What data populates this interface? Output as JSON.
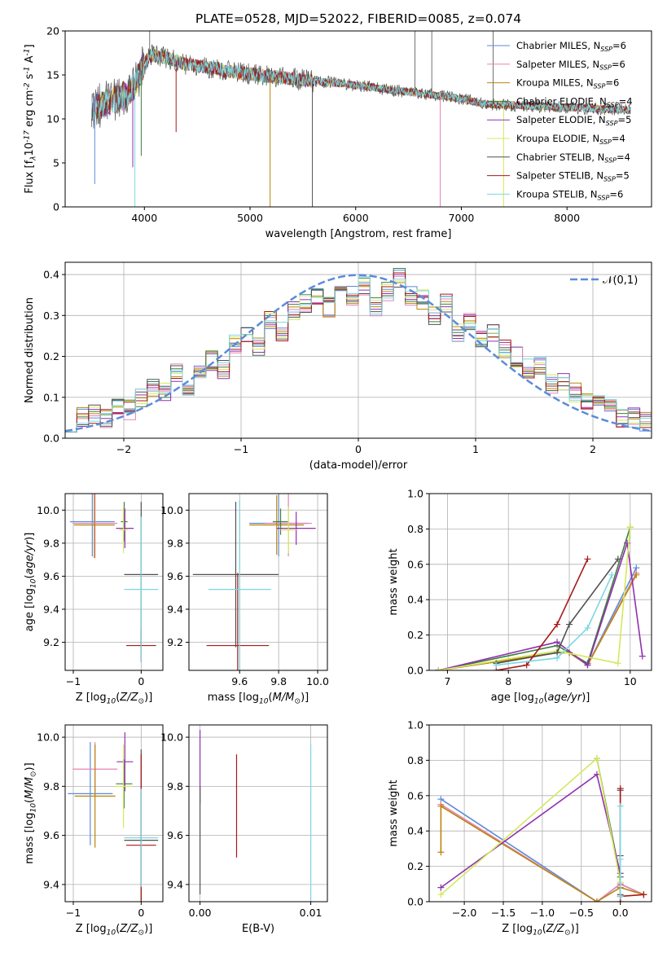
{
  "colors": {
    "chabrier_miles": "#5b8bd9",
    "salpeter_miles": "#e882b5",
    "kroupa_miles": "#b8860b",
    "chabrier_elodie": "#3f7f3f",
    "salpeter_elodie": "#9030b0",
    "kroupa_elodie": "#d4e85c",
    "chabrier_stelib": "#505050",
    "salpeter_stelib": "#a81818",
    "kroupa_stelib": "#7cd6e2",
    "bestfit_orange": "#e0733c",
    "gauss": "#5b8bd9",
    "grid": "#b0b0b0"
  },
  "chart_data": [
    {
      "id": "spectrum",
      "type": "line",
      "title": "PLATE=0528, MJD=52022, FIBERID=0085, z=0.074",
      "xlabel": "wavelength [Angstrom, rest frame]",
      "ylabel": "Flux [f$_\\lambda$10$^{-17}$ erg cm$^{-2}$ s$^{-1}$ A$^{-1}$]",
      "xlim": [
        3250,
        8800
      ],
      "ylim": [
        0,
        20
      ],
      "xticks": [
        4000,
        5000,
        6000,
        7000,
        8000
      ],
      "yticks": [
        0,
        5,
        10,
        15,
        20
      ],
      "grid": false,
      "legend_position": "top-right",
      "legend": [
        "Chabrier MILES, N$_{SSP}$=6",
        "Salpeter MILES, N$_{SSP}$=6",
        "Kroupa MILES, N$_{SSP}$=6",
        "Chabrier ELODIE, N$_{SSP}$=4",
        "Salpeter ELODIE, N$_{SSP}$=5",
        "Kroupa ELODIE, N$_{SSP}$=4",
        "Chabrier STELIB, N$_{SSP}$=4",
        "Salpeter STELIB, N$_{SSP}$=5",
        "Kroupa STELIB, N$_{SSP}$=6"
      ],
      "continuum": {
        "x": [
          3500,
          3600,
          3700,
          3800,
          3900,
          3980,
          4050,
          4200,
          4400,
          4600,
          4800,
          5000,
          5200,
          5400,
          5600,
          5800,
          6000,
          6200,
          6400,
          6600,
          6800,
          7000,
          7200,
          7400,
          7600,
          7800,
          8000,
          8200,
          8400,
          8600
        ],
        "y": [
          11.4,
          11.6,
          12.1,
          12.6,
          13.6,
          15.8,
          17.2,
          17.0,
          16.2,
          15.9,
          15.4,
          15.1,
          14.8,
          14.6,
          14.3,
          14.1,
          13.8,
          13.5,
          13.2,
          12.9,
          12.6,
          12.3,
          11.7,
          11.6,
          11.5,
          11.4,
          11.3,
          11.2,
          11.1,
          11.0
        ]
      },
      "absorption_dips": [
        {
          "x": 3530,
          "y": 2.6
        },
        {
          "x": 3890,
          "y": 4.5
        },
        {
          "x": 3910,
          "y": 0
        },
        {
          "x": 3970,
          "y": 5.8
        },
        {
          "x": 4300,
          "y": 8.5
        },
        {
          "x": 5190,
          "y": 0
        },
        {
          "x": 5590,
          "y": 0
        },
        {
          "x": 6800,
          "y": 0
        },
        {
          "x": 7400,
          "y": 0
        }
      ],
      "emission_spikes": [
        {
          "x": 4050,
          "y": 20
        },
        {
          "x": 6560,
          "y": 20
        },
        {
          "x": 6720,
          "y": 20
        },
        {
          "x": 7300,
          "y": 20
        }
      ]
    },
    {
      "id": "residuals",
      "type": "line",
      "xlabel": "(data-model)/error",
      "ylabel": "Normed distribution",
      "xlim": [
        -2.5,
        2.5
      ],
      "ylim": [
        0,
        0.43
      ],
      "xticks": [
        -2,
        -1,
        0,
        1,
        2
      ],
      "yticks": [
        0.0,
        0.1,
        0.2,
        0.3,
        0.4
      ],
      "grid": true,
      "legend_position": "top-right",
      "legend": [
        "$\\mathcal{N}(0,1)$"
      ],
      "bin_edges": [
        -2.5,
        -2.4,
        -2.3,
        -2.2,
        -2.1,
        -2.0,
        -1.9,
        -1.8,
        -1.7,
        -1.6,
        -1.5,
        -1.4,
        -1.3,
        -1.2,
        -1.1,
        -1.0,
        -0.9,
        -0.8,
        -0.7,
        -0.6,
        -0.5,
        -0.4,
        -0.3,
        -0.2,
        -0.1,
        0.0,
        0.1,
        0.2,
        0.3,
        0.4,
        0.5,
        0.6,
        0.7,
        0.8,
        0.9,
        1.0,
        1.1,
        1.2,
        1.3,
        1.4,
        1.5,
        1.6,
        1.7,
        1.8,
        1.9,
        2.0,
        2.1,
        2.2,
        2.3,
        2.4,
        2.5
      ],
      "observed": [
        0.04,
        0.05,
        0.06,
        0.05,
        0.08,
        0.07,
        0.1,
        0.12,
        0.11,
        0.16,
        0.12,
        0.17,
        0.19,
        0.17,
        0.23,
        0.26,
        0.22,
        0.29,
        0.26,
        0.31,
        0.33,
        0.35,
        0.32,
        0.37,
        0.35,
        0.37,
        0.32,
        0.36,
        0.39,
        0.35,
        0.34,
        0.3,
        0.33,
        0.26,
        0.29,
        0.24,
        0.26,
        0.22,
        0.2,
        0.17,
        0.18,
        0.13,
        0.14,
        0.11,
        0.09,
        0.08,
        0.07,
        0.05,
        0.05,
        0.04
      ],
      "gaussian": {
        "mu": 0,
        "sigma": 1
      }
    },
    {
      "id": "age_vs_Z",
      "type": "scatter",
      "xlabel": "Z [log$_{10}$($Z/Z_\\odot$)]",
      "ylabel": "age  [log$_{10}$($age/yr$)]",
      "xlim": [
        -1.12,
        0.32
      ],
      "ylim": [
        9.03,
        10.1
      ],
      "xticks": [
        -1,
        0
      ],
      "yticks": [
        9.2,
        9.4,
        9.6,
        9.8,
        10.0
      ],
      "grid": true,
      "errorbars": [
        {
          "model": "chabrier_miles",
          "x": -0.72,
          "xerr": 0.33,
          "y": 9.93,
          "yerr": 0.21
        },
        {
          "model": "salpeter_miles",
          "x": -0.68,
          "xerr": 0.33,
          "y": 9.92,
          "yerr": 0.21
        },
        {
          "model": "kroupa_miles",
          "x": -0.69,
          "xerr": 0.3,
          "y": 9.91,
          "yerr": 0.2
        },
        {
          "model": "chabrier_elodie",
          "x": -0.25,
          "xerr": 0.05,
          "y": 9.93,
          "yerr": 0.12
        },
        {
          "model": "salpeter_elodie",
          "x": -0.24,
          "xerr": 0.13,
          "y": 9.89,
          "yerr": 0.12
        },
        {
          "model": "kroupa_elodie",
          "x": -0.26,
          "xerr": 0.06,
          "y": 9.88,
          "yerr": 0.14
        },
        {
          "model": "chabrier_stelib",
          "x": 0.0,
          "xerr": 0.25,
          "y": 9.61,
          "yerr": 0.44
        },
        {
          "model": "salpeter_stelib",
          "x": 0.0,
          "xerr": 0.22,
          "y": 9.18,
          "yerr": 0.1
        },
        {
          "model": "kroupa_stelib",
          "x": 0.0,
          "xerr": 0.25,
          "y": 9.52,
          "yerr": 0.44
        }
      ]
    },
    {
      "id": "age_vs_mass",
      "type": "scatter",
      "xlabel": "mass [log$_{10}$($M/M_\\odot$)]",
      "ylabel": "",
      "xlim": [
        9.34,
        10.05
      ],
      "ylim": [
        9.03,
        10.1
      ],
      "xticks": [
        9.6,
        9.8,
        10.0
      ],
      "yticks": [
        9.2,
        9.4,
        9.6,
        9.8,
        10.0
      ],
      "grid": true,
      "errorbars": [
        {
          "model": "chabrier_miles",
          "x": 9.8,
          "xerr": 0.15,
          "y": 9.92,
          "yerr": 0.2
        },
        {
          "model": "salpeter_miles",
          "x": 9.85,
          "xerr": 0.12,
          "y": 9.92,
          "yerr": 0.2
        },
        {
          "model": "kroupa_miles",
          "x": 9.79,
          "xerr": 0.14,
          "y": 9.91,
          "yerr": 0.18
        },
        {
          "model": "chabrier_elodie",
          "x": 9.81,
          "xerr": 0.04,
          "y": 9.93,
          "yerr": 0.08
        },
        {
          "model": "salpeter_elodie",
          "x": 9.89,
          "xerr": 0.1,
          "y": 9.89,
          "yerr": 0.1
        },
        {
          "model": "kroupa_elodie",
          "x": 9.85,
          "xerr": 0.04,
          "y": 9.88,
          "yerr": 0.14
        },
        {
          "model": "chabrier_stelib",
          "x": 9.58,
          "xerr": 0.22,
          "y": 9.61,
          "yerr": 0.44
        },
        {
          "model": "salpeter_stelib",
          "x": 9.59,
          "xerr": 0.16,
          "y": 9.18,
          "yerr": 0.44
        },
        {
          "model": "kroupa_stelib",
          "x": 9.6,
          "xerr": 0.16,
          "y": 9.52,
          "yerr": 0.54
        }
      ]
    },
    {
      "id": "weight_vs_age",
      "type": "line",
      "xlabel": "age  [log$_{10}$($age/yr$)]",
      "ylabel": "mass weight",
      "xlim": [
        6.7,
        10.35
      ],
      "ylim": [
        0,
        1
      ],
      "xticks": [
        7,
        8,
        9,
        10
      ],
      "yticks": [
        0.0,
        0.2,
        0.4,
        0.6,
        0.8,
        1.0
      ],
      "grid": true,
      "series": [
        {
          "model": "chabrier_miles",
          "x": [
            6.85,
            8.8,
            9.0,
            9.3,
            10.1
          ],
          "y": [
            0.0,
            0.1,
            0.1,
            0.03,
            0.58
          ]
        },
        {
          "model": "salpeter_miles",
          "x": [
            6.85,
            8.8,
            9.0,
            9.3,
            10.1
          ],
          "y": [
            0.0,
            0.1,
            0.1,
            0.03,
            0.55
          ]
        },
        {
          "model": "kroupa_miles",
          "x": [
            6.85,
            8.8,
            9.0,
            9.3,
            10.1
          ],
          "y": [
            0.0,
            0.1,
            0.1,
            0.03,
            0.54
          ]
        },
        {
          "model": "chabrier_elodie",
          "x": [
            6.85,
            8.8,
            9.3,
            10.0
          ],
          "y": [
            0.0,
            0.14,
            0.04,
            0.81
          ]
        },
        {
          "model": "salpeter_elodie",
          "x": [
            6.85,
            8.8,
            9.3,
            9.95,
            10.2
          ],
          "y": [
            0.0,
            0.16,
            0.03,
            0.72,
            0.08
          ]
        },
        {
          "model": "kroupa_elodie",
          "x": [
            6.85,
            8.8,
            9.8,
            10.0
          ],
          "y": [
            0.0,
            0.11,
            0.04,
            0.81
          ]
        },
        {
          "model": "chabrier_stelib",
          "x": [
            7.8,
            8.8,
            9.0,
            9.8
          ],
          "y": [
            0.04,
            0.1,
            0.26,
            0.63
          ]
        },
        {
          "model": "salpeter_stelib",
          "x": [
            7.8,
            8.3,
            8.8,
            9.3
          ],
          "y": [
            0.0,
            0.03,
            0.26,
            0.63
          ]
        },
        {
          "model": "kroupa_stelib",
          "x": [
            7.8,
            8.8,
            9.3,
            9.7
          ],
          "y": [
            0.03,
            0.07,
            0.24,
            0.54
          ]
        }
      ]
    },
    {
      "id": "mass_vs_Z",
      "type": "scatter",
      "xlabel": "Z [log$_{10}$($Z/Z_\\odot$)]",
      "ylabel": "mass [log$_{10}$($M/M_\\odot$)]",
      "xlim": [
        -1.12,
        0.32
      ],
      "ylim": [
        9.33,
        10.05
      ],
      "xticks": [
        -1,
        0
      ],
      "yticks": [
        9.4,
        9.6,
        9.8,
        10.0
      ],
      "grid": true,
      "errorbars": [
        {
          "model": "chabrier_miles",
          "x": -0.75,
          "xerr": 0.33,
          "y": 9.77,
          "yerr": 0.21
        },
        {
          "model": "salpeter_miles",
          "x": -0.68,
          "xerr": 0.33,
          "y": 9.87,
          "yerr": 0.11
        },
        {
          "model": "kroupa_miles",
          "x": -0.68,
          "xerr": 0.3,
          "y": 9.76,
          "yerr": 0.21
        },
        {
          "model": "chabrier_elodie",
          "x": -0.25,
          "xerr": 0.12,
          "y": 9.81,
          "yerr": 0.1
        },
        {
          "model": "salpeter_elodie",
          "x": -0.24,
          "xerr": 0.12,
          "y": 9.9,
          "yerr": 0.12
        },
        {
          "model": "kroupa_elodie",
          "x": -0.26,
          "xerr": 0.13,
          "y": 9.8,
          "yerr": 0.17
        },
        {
          "model": "chabrier_stelib",
          "x": 0.0,
          "xerr": 0.25,
          "y": 9.58,
          "yerr": 0.37
        },
        {
          "model": "salpeter_stelib",
          "x": 0.0,
          "xerr": 0.22,
          "y": 9.56,
          "yerr": 0.37
        },
        {
          "model": "kroupa_stelib",
          "x": 0.0,
          "xerr": 0.25,
          "y": 9.59,
          "yerr": 0.2
        }
      ]
    },
    {
      "id": "mass_vs_ebv",
      "type": "scatter",
      "xlabel": "E(B-V)",
      "ylabel": "",
      "xlim": [
        -0.001,
        0.0115
      ],
      "ylim": [
        9.33,
        10.05
      ],
      "xticks": [
        0.0,
        0.01
      ],
      "yticks": [
        9.4,
        9.6,
        9.8,
        10.0
      ],
      "grid": true,
      "errorbars": [
        {
          "model": "salpeter_elodie",
          "x": 0.0,
          "xerr": 0.0,
          "y": 9.88,
          "yerr": 0.15
        },
        {
          "model": "chabrier_stelib",
          "x": 0.0,
          "xerr": 0.0,
          "y": 9.58,
          "yerr": 0.22
        },
        {
          "model": "salpeter_stelib",
          "x": 0.0033,
          "xerr": 0.0,
          "y": 9.72,
          "yerr": 0.21
        },
        {
          "model": "kroupa_stelib",
          "x": 0.01,
          "xerr": 0.0,
          "y": 9.62,
          "yerr": 0.35
        }
      ]
    },
    {
      "id": "weight_vs_Z",
      "type": "line",
      "xlabel": "Z [log$_{10}$($Z/Z_\\odot$)]",
      "ylabel": "mass weight",
      "xlim": [
        -2.45,
        0.4
      ],
      "ylim": [
        0,
        1
      ],
      "xticks": [
        -2.0,
        -1.5,
        -1.0,
        -0.5,
        0.0
      ],
      "yticks": [
        0.0,
        0.2,
        0.4,
        0.6,
        0.8,
        1.0
      ],
      "grid": true,
      "series": [
        {
          "model": "chabrier_miles",
          "x": [
            -2.3,
            -0.3,
            0.0,
            0.3
          ],
          "y": [
            0.58,
            0.0,
            0.1,
            0.04
          ]
        },
        {
          "model": "salpeter_miles",
          "x": [
            -2.3,
            -0.3,
            0.0,
            0.3
          ],
          "y": [
            0.55,
            0.0,
            0.1,
            0.04
          ]
        },
        {
          "model": "kroupa_miles",
          "x": [
            -2.3,
            -2.3,
            -0.3,
            0.0,
            0.3
          ],
          "y": [
            0.28,
            0.54,
            0.0,
            0.08,
            0.04
          ]
        },
        {
          "model": "chabrier_elodie",
          "x": [
            -0.3,
            0.0
          ],
          "y": [
            0.81,
            0.14
          ]
        },
        {
          "model": "salpeter_elodie",
          "x": [
            -2.3,
            -0.3,
            0.0
          ],
          "y": [
            0.08,
            0.72,
            0.16
          ]
        },
        {
          "model": "kroupa_elodie",
          "x": [
            -2.3,
            -0.3,
            0.0
          ],
          "y": [
            0.04,
            0.81,
            0.11
          ]
        },
        {
          "model": "chabrier_stelib",
          "x": [
            0.0,
            0.0,
            0.0
          ],
          "y": [
            0.04,
            0.26,
            0.63
          ]
        },
        {
          "model": "salpeter_stelib",
          "x": [
            0.0,
            0.0,
            0.0,
            0.3
          ],
          "y": [
            0.0,
            0.64,
            0.03,
            0.04
          ]
        },
        {
          "model": "kroupa_stelib",
          "x": [
            0.0,
            0.0,
            0.0
          ],
          "y": [
            0.03,
            0.54,
            0.24
          ]
        }
      ]
    }
  ]
}
